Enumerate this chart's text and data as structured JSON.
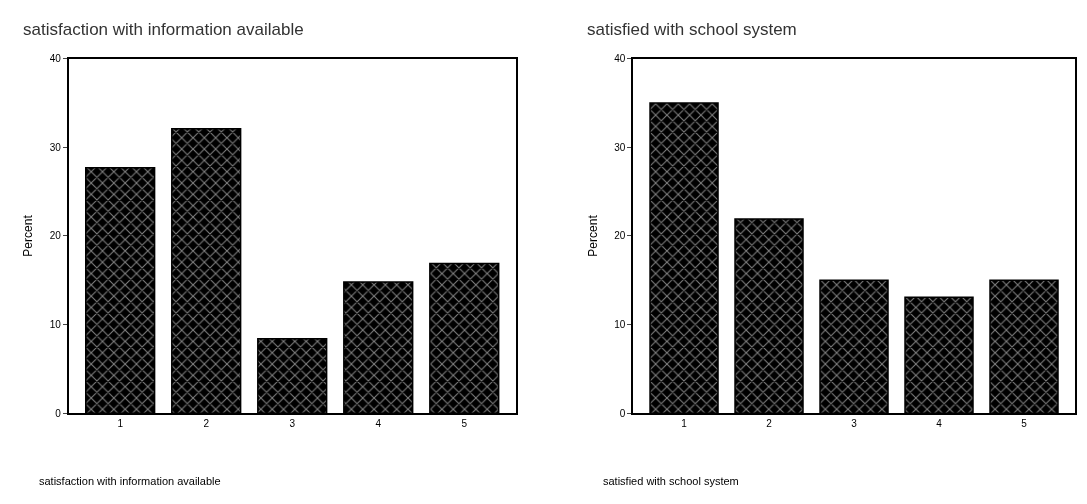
{
  "chart_data": [
    {
      "type": "bar",
      "title": "satisfaction with information available",
      "xlabel": "satisfaction with information available",
      "ylabel": "Percent",
      "categories": [
        "1",
        "2",
        "3",
        "4",
        "5"
      ],
      "values": [
        27.7,
        32.1,
        8.4,
        14.8,
        16.9
      ],
      "color": "#000000",
      "ylim": [
        0,
        40
      ],
      "yticks": [
        0,
        10,
        20,
        30,
        40
      ]
    },
    {
      "type": "bar",
      "title": "satisfied with school system",
      "xlabel": "satisfied with school system",
      "ylabel": "Percent",
      "categories": [
        "1",
        "2",
        "3",
        "4",
        "5"
      ],
      "values": [
        35.0,
        21.9,
        15.0,
        13.1,
        15.0
      ],
      "color": "#000000",
      "ylim": [
        0,
        40
      ],
      "yticks": [
        0,
        10,
        20,
        30,
        40
      ]
    }
  ]
}
